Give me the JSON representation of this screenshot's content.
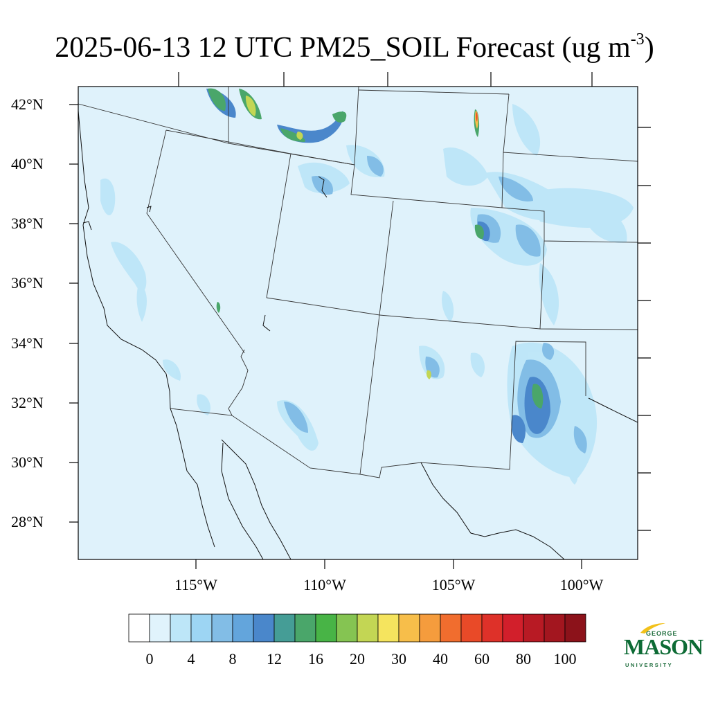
{
  "title_main": "2025-06-13 12 UTC PM25_SOIL Forecast (ug m",
  "title_sup": "-3",
  "title_end": ")",
  "lat_labels": [
    "42°N",
    "40°N",
    "38°N",
    "36°N",
    "34°N",
    "32°N",
    "30°N",
    "28°N"
  ],
  "lon_labels": [
    "115°W",
    "110°W",
    "105°W",
    "100°W"
  ],
  "colorbar": {
    "labels": [
      "0",
      "4",
      "8",
      "12",
      "16",
      "20",
      "30",
      "40",
      "60",
      "80",
      "100"
    ],
    "colors": [
      "#ffffff",
      "#e0f3fc",
      "#bde6f8",
      "#9dd5f3",
      "#82bde6",
      "#63a5dc",
      "#4a87cb",
      "#459d96",
      "#4aa66a",
      "#48b446",
      "#85c452",
      "#c3d654",
      "#f5e45e",
      "#f7be4a",
      "#f59c3d",
      "#f16d2e",
      "#e94a28",
      "#de3129",
      "#d21f2b",
      "#b81a24",
      "#a3161f",
      "#8c121a"
    ]
  },
  "logo": {
    "line1": "GEORGE",
    "line2": "MASON",
    "line3": "UNIVERSITY",
    "colors": {
      "green": "#0d6b35",
      "gold": "#f2c11a"
    }
  },
  "map": {
    "background_fill": "#dff2fb",
    "plumes": [
      {
        "region": "Idaho-Montana border",
        "max_bin": "16-20"
      },
      {
        "region": "Idaho Snake River",
        "max_bin": "16-20"
      },
      {
        "region": "Nebraska panhandle",
        "max_bin": "60-80"
      },
      {
        "region": "Eastern Colorado",
        "max_bin": "16-20"
      },
      {
        "region": "West Texas",
        "max_bin": "16-20"
      }
    ]
  }
}
